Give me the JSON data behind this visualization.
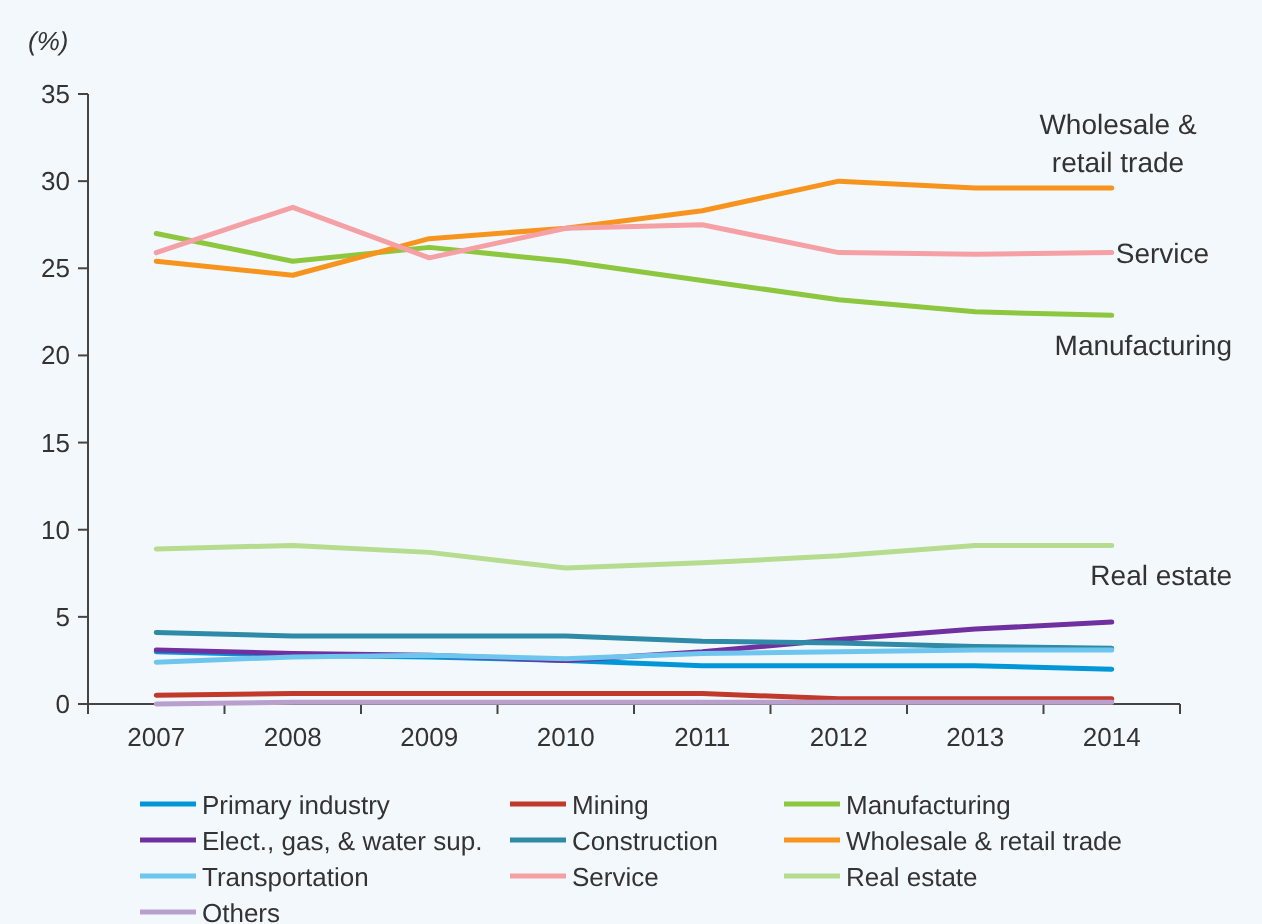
{
  "chart_data": {
    "type": "line",
    "ylabel": "(%)",
    "categories": [
      "2007",
      "2008",
      "2009",
      "2010",
      "2011",
      "2012",
      "2013",
      "2014"
    ],
    "ylim": [
      0,
      35
    ],
    "yticks": [
      0,
      5,
      10,
      15,
      20,
      25,
      30,
      35
    ],
    "grid": false,
    "legend": "bottom",
    "marker": "none",
    "line_style": "solid",
    "series": [
      {
        "name": "Primary industry",
        "color": "#0097d9",
        "values": [
          3.0,
          2.8,
          2.7,
          2.5,
          2.2,
          2.2,
          2.2,
          2.0
        ]
      },
      {
        "name": "Mining",
        "color": "#c0392b",
        "values": [
          0.5,
          0.6,
          0.6,
          0.6,
          0.6,
          0.3,
          0.3,
          0.3
        ]
      },
      {
        "name": "Manufacturing",
        "color": "#8dc63f",
        "values": [
          27.0,
          25.4,
          26.2,
          25.4,
          24.3,
          23.2,
          22.5,
          22.3
        ]
      },
      {
        "name": "Elect., gas, & water sup.",
        "color": "#7030a0",
        "values": [
          3.1,
          2.9,
          2.8,
          2.5,
          3.0,
          3.7,
          4.3,
          4.7
        ]
      },
      {
        "name": "Construction",
        "color": "#2e8aa6",
        "values": [
          4.1,
          3.9,
          3.9,
          3.9,
          3.6,
          3.5,
          3.3,
          3.2
        ]
      },
      {
        "name": "Wholesale & retail trade",
        "color": "#f7941d",
        "values": [
          25.4,
          24.6,
          26.7,
          27.3,
          28.3,
          30.0,
          29.6,
          29.6
        ]
      },
      {
        "name": "Transportation",
        "color": "#6ec6ee",
        "values": [
          2.4,
          2.7,
          2.8,
          2.6,
          2.9,
          3.0,
          3.1,
          3.1
        ]
      },
      {
        "name": "Service",
        "color": "#f4a0a4",
        "values": [
          25.9,
          28.5,
          25.6,
          27.3,
          27.5,
          25.9,
          25.8,
          25.9
        ]
      },
      {
        "name": "Real estate",
        "color": "#b5dc8f",
        "values": [
          8.9,
          9.1,
          8.7,
          7.8,
          8.1,
          8.5,
          9.1,
          9.1
        ]
      },
      {
        "name": "Others",
        "color": "#b9a0cc",
        "values": [
          0.0,
          0.1,
          0.1,
          0.1,
          0.1,
          0.1,
          0.1,
          0.1
        ]
      }
    ],
    "annotations": [
      {
        "text": "Wholesale & retail trade",
        "x": "2014",
        "y": 29.6
      },
      {
        "text": "Service",
        "x": "2014",
        "y": 25.9
      },
      {
        "text": "Manufacturing",
        "x": "2014",
        "y": 22.3
      },
      {
        "text": "Real estate",
        "x": "2014",
        "y": 9.1
      }
    ]
  }
}
